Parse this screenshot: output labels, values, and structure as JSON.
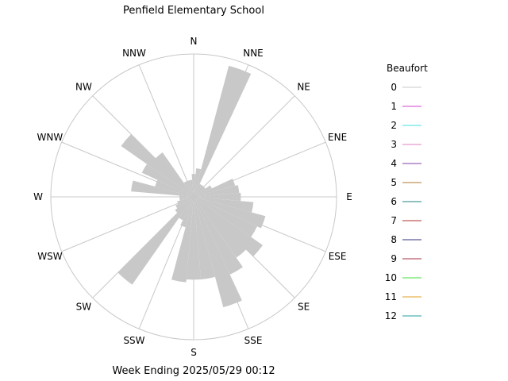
{
  "chart_data": {
    "type": "wind-rose",
    "title": "Penfield Elementary School",
    "footer": "Week Ending 2025/05/29 00:12",
    "directions": [
      "N",
      "NNE",
      "NE",
      "ENE",
      "E",
      "ESE",
      "SE",
      "SSE",
      "S",
      "SSW",
      "SW",
      "WSW",
      "W",
      "WNW",
      "NW",
      "NNW"
    ],
    "legend": {
      "title": "Beaufort",
      "entries": [
        {
          "label": "0",
          "color": "#c8c8c8"
        },
        {
          "label": "1",
          "color": "#d040d0"
        },
        {
          "label": "2",
          "color": "#40e0e0"
        },
        {
          "label": "3",
          "color": "#e080c0"
        },
        {
          "label": "4",
          "color": "#8040a0"
        },
        {
          "label": "5",
          "color": "#b07830"
        },
        {
          "label": "6",
          "color": "#208080"
        },
        {
          "label": "7",
          "color": "#b03030"
        },
        {
          "label": "8",
          "color": "#303080"
        },
        {
          "label": "9",
          "color": "#a03040"
        },
        {
          "label": "10",
          "color": "#40e040"
        },
        {
          "label": "11",
          "color": "#e0a020"
        },
        {
          "label": "12",
          "color": "#20a0a0"
        }
      ]
    },
    "bin_width_deg": 10,
    "petals": [
      {
        "dir": 0,
        "value": 0.16
      },
      {
        "dir": 10,
        "value": 0.2
      },
      {
        "dir": 20,
        "value": 0.95
      },
      {
        "dir": 30,
        "value": 0.1
      },
      {
        "dir": 40,
        "value": 0.1
      },
      {
        "dir": 50,
        "value": 0.1
      },
      {
        "dir": 60,
        "value": 0.14
      },
      {
        "dir": 70,
        "value": 0.3
      },
      {
        "dir": 80,
        "value": 0.32
      },
      {
        "dir": 90,
        "value": 0.33
      },
      {
        "dir": 100,
        "value": 0.42
      },
      {
        "dir": 110,
        "value": 0.52
      },
      {
        "dir": 120,
        "value": 0.49
      },
      {
        "dir": 130,
        "value": 0.59
      },
      {
        "dir": 140,
        "value": 0.52
      },
      {
        "dir": 150,
        "value": 0.6
      },
      {
        "dir": 160,
        "value": 0.8
      },
      {
        "dir": 170,
        "value": 0.58
      },
      {
        "dir": 180,
        "value": 0.58
      },
      {
        "dir": 190,
        "value": 0.6
      },
      {
        "dir": 200,
        "value": 0.22
      },
      {
        "dir": 210,
        "value": 0.18
      },
      {
        "dir": 220,
        "value": 0.75
      },
      {
        "dir": 230,
        "value": 0.16
      },
      {
        "dir": 240,
        "value": 0.14
      },
      {
        "dir": 250,
        "value": 0.12
      },
      {
        "dir": 260,
        "value": 0.1
      },
      {
        "dir": 270,
        "value": 0.1
      },
      {
        "dir": 280,
        "value": 0.44
      },
      {
        "dir": 290,
        "value": 0.28
      },
      {
        "dir": 300,
        "value": 0.4
      },
      {
        "dir": 310,
        "value": 0.62
      },
      {
        "dir": 320,
        "value": 0.38
      },
      {
        "dir": 330,
        "value": 0.12
      },
      {
        "dir": 340,
        "value": 0.12
      },
      {
        "dir": 350,
        "value": 0.12
      }
    ],
    "rmax": 1.0,
    "grid": true
  }
}
